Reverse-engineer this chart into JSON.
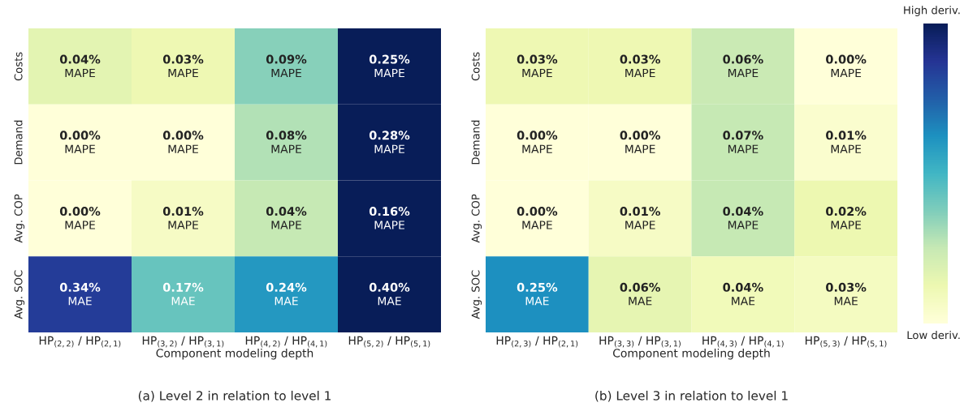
{
  "chart_data": [
    {
      "type": "heatmap",
      "title": "(a) Level 2 in relation to level 1",
      "xlabel": "Component modeling depth",
      "categories": [
        "HP$_{(2,2)}$ / HP$_{(2,1)}$",
        "HP$_{(3,2)}$ / HP$_{(3,1)}$",
        "HP$_{(4,2)}$ / HP$_{(4,1)}$",
        "HP$_{(5,2)}$ / HP$_{(5,1)}$"
      ],
      "y_categories": [
        "Costs",
        "Demand",
        "Avg. COP",
        "Avg. SOC"
      ],
      "cells": [
        [
          0.04,
          0.03,
          0.09,
          0.25
        ],
        [
          0.0,
          0.0,
          0.08,
          0.28
        ],
        [
          0.0,
          0.01,
          0.04,
          0.16
        ],
        [
          0.34,
          0.17,
          0.24,
          0.4
        ]
      ],
      "cell_labels": [
        [
          "0.04%\nMAPE",
          "0.03%\nMAPE",
          "0.09%\nMAPE",
          "0.25%\nMAPE"
        ],
        [
          "0.00%\nMAPE",
          "0.00%\nMAPE",
          "0.08%\nMAPE",
          "0.28%\nMAPE"
        ],
        [
          "0.00%\nMAPE",
          "0.01%\nMAPE",
          "0.04%\nMAPE",
          "0.16%\nMAPE"
        ],
        [
          "0.34%\nMAE",
          "0.17%\nMAE",
          "0.24%\nMAE",
          "0.40%\nMAE"
        ]
      ]
    },
    {
      "type": "heatmap",
      "title": "(b) Level 3 in relation to level 1",
      "xlabel": "Component modeling depth",
      "categories": [
        "HP$_{(2,3)}$ / HP$_{(2,1)}$",
        "HP$_{(3,3)}$ / HP$_{(3,1)}$",
        "HP$_{(4,3)}$ / HP$_{(4,1)}$",
        "HP$_{(5,3)}$ / HP$_{(5,1)}$"
      ],
      "y_categories": [
        "Costs",
        "Demand",
        "Avg. COP",
        "Avg. SOC"
      ],
      "cells": [
        [
          0.03,
          0.03,
          0.06,
          0.0
        ],
        [
          0.0,
          0.0,
          0.07,
          0.01
        ],
        [
          0.0,
          0.01,
          0.04,
          0.02
        ],
        [
          0.25,
          0.06,
          0.04,
          0.03
        ]
      ],
      "cell_labels": [
        [
          "0.03%\nMAPE",
          "0.03%\nMAPE",
          "0.06%\nMAPE",
          "0.00%\nMAPE"
        ],
        [
          "0.00%\nMAPE",
          "0.00%\nMAPE",
          "0.07%\nMAPE",
          "0.01%\nMAPE"
        ],
        [
          "0.00%\nMAPE",
          "0.01%\nMAPE",
          "0.04%\nMAPE",
          "0.02%\nMAPE"
        ],
        [
          "0.25%\nMAE",
          "0.06%\nMAE",
          "0.04%\nMAE",
          "0.03%\nMAE"
        ]
      ],
      "annotations": [
        "High deriv.",
        "Low deriv."
      ]
    }
  ]
}
